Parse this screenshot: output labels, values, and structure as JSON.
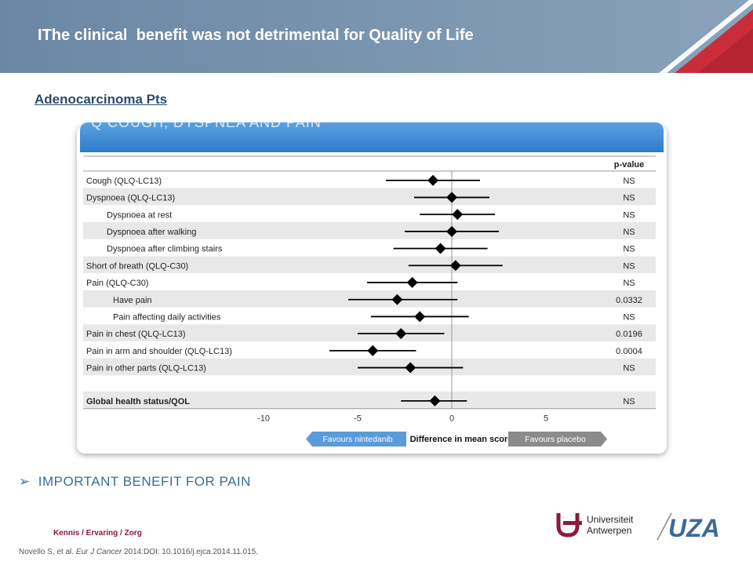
{
  "header": {
    "title": "IThe clinical  benefit was not detrimental for Quality of Life"
  },
  "subtitle": "Adenocarcinoma Pts",
  "panel": {
    "clipped_heading": "Q COUGH, DYSPNEA AND PAIN"
  },
  "chart_data": {
    "type": "forest",
    "xlabel": "Difference in mean score",
    "xlim": [
      -10.5,
      7.5
    ],
    "xticks": [
      -10,
      -5,
      0,
      5
    ],
    "reference_line": 0,
    "pvalue_header": "p-value",
    "favours_left": "Favours nintedanib",
    "favours_right": "Favours placebo",
    "rows": [
      {
        "label": "Cough (QLQ-LC13)",
        "indent": 0,
        "bold": false,
        "est": -1.0,
        "lo": -3.5,
        "hi": 1.5,
        "p": "NS"
      },
      {
        "label": "Dyspnoea (QLQ-LC13)",
        "indent": 0,
        "bold": false,
        "est": 0.0,
        "lo": -2.0,
        "hi": 2.0,
        "p": "NS"
      },
      {
        "label": "Dyspnoea at rest",
        "indent": 1,
        "bold": false,
        "est": 0.3,
        "lo": -1.7,
        "hi": 2.3,
        "p": "NS"
      },
      {
        "label": "Dyspnoea after walking",
        "indent": 1,
        "bold": false,
        "est": 0.0,
        "lo": -2.5,
        "hi": 2.5,
        "p": "NS"
      },
      {
        "label": "Dyspnoea after climbing stairs",
        "indent": 1,
        "bold": false,
        "est": -0.6,
        "lo": -3.1,
        "hi": 1.9,
        "p": "NS"
      },
      {
        "label": "Short of breath (QLQ-C30)",
        "indent": 0,
        "bold": false,
        "est": 0.2,
        "lo": -2.3,
        "hi": 2.7,
        "p": "NS"
      },
      {
        "label": "Pain (QLQ-C30)",
        "indent": 0,
        "bold": false,
        "est": -2.1,
        "lo": -4.5,
        "hi": 0.3,
        "p": "NS"
      },
      {
        "label": "Have pain",
        "indent": 2,
        "bold": false,
        "est": -2.9,
        "lo": -5.5,
        "hi": 0.3,
        "p": "0.0332"
      },
      {
        "label": "Pain affecting daily activities",
        "indent": 2,
        "bold": false,
        "est": -1.7,
        "lo": -4.3,
        "hi": 0.9,
        "p": "NS"
      },
      {
        "label": "Pain in chest (QLQ-LC13)",
        "indent": 0,
        "bold": false,
        "est": -2.7,
        "lo": -5.0,
        "hi": -0.4,
        "p": "0.0196"
      },
      {
        "label": "Pain in arm and shoulder (QLQ-LC13)",
        "indent": 0,
        "bold": false,
        "est": -4.2,
        "lo": -6.5,
        "hi": -1.9,
        "p": "0.0004"
      },
      {
        "label": "Pain in other parts (QLQ-LC13)",
        "indent": 0,
        "bold": false,
        "est": -2.2,
        "lo": -5.0,
        "hi": 0.6,
        "p": "NS"
      },
      {
        "label": "Global health status/QOL",
        "indent": 0,
        "bold": true,
        "est": -0.9,
        "lo": -2.7,
        "hi": 0.8,
        "p": "NS",
        "separate": true
      }
    ]
  },
  "bullet": {
    "arrow": "➢",
    "text": "IMPORTANT BENEFIT FOR PAIN"
  },
  "footer": {
    "brand": "Kennis / Ervaring / Zorg",
    "citation_authors": "Novello S, et al. ",
    "citation_journal": "Eur J Cancer",
    "citation_rest": " 2014:DOI: 10.1016/j.ejca.2014.11.015."
  },
  "logos": {
    "university_line1": "Universiteit",
    "university_line2": "Antwerpen",
    "hospital": "UZA",
    "university_color": "#8a1b3a",
    "hospital_color": "#3a6a9a"
  },
  "colors": {
    "header": "#7b96b0",
    "panel_bar": "#3c8ad6",
    "row_stripe": "#e8e8e8",
    "favours_left_bg": "#5b9bd9",
    "favours_right_bg": "#8b8b8b"
  }
}
